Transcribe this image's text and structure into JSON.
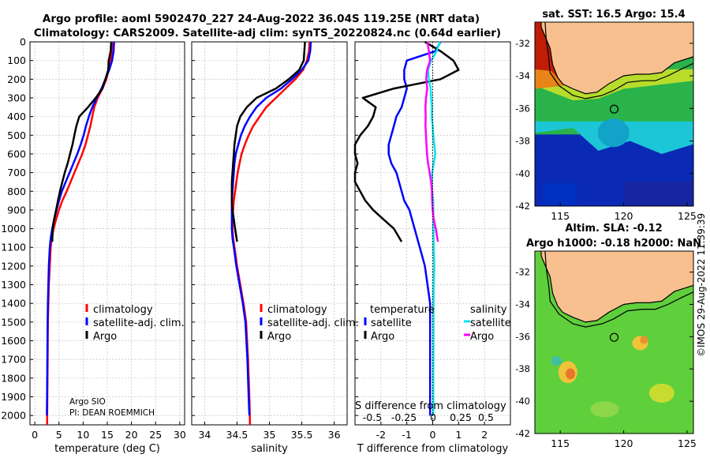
{
  "titles": {
    "line1": "Argo profile: aoml 5902470_227 24-Aug-2022 36.04S 119.25E (NRT data)",
    "line2": "Climatology: CARS2009. Satellite-adj clim: synTS_20220824.nc (0.64d earlier)"
  },
  "credit": "©IMOS 29-Aug-2022 11:39:39",
  "colors": {
    "argo": "#000000",
    "climatology": "#ff0000",
    "satellite": "#0000ff",
    "sal_sat": "#00e5ee",
    "sal_argo": "#ff00ff",
    "land": "#f9c08f"
  },
  "chart_data": [
    {
      "type": "line",
      "id": "temperature",
      "xlabel": "temperature (deg C)",
      "ylabel": "",
      "xlim": [
        -1,
        31
      ],
      "ylim": [
        2050,
        0
      ],
      "xticks": [
        0,
        5,
        10,
        15,
        20,
        25,
        30
      ],
      "yticks": [
        0,
        100,
        200,
        300,
        400,
        500,
        600,
        700,
        800,
        900,
        1000,
        1100,
        1200,
        1300,
        1400,
        1500,
        1600,
        1700,
        1800,
        1900,
        2000
      ],
      "legend": [
        "climatology",
        "satellite-adj. clim.",
        "Argo"
      ],
      "annotations": [
        "Argo SIO",
        "PI: DEAN ROEMMICH"
      ],
      "series": [
        {
          "name": "climatology",
          "color": "#ff0000",
          "x": [
            16.0,
            15.9,
            15.7,
            15.3,
            14.8,
            14.0,
            13.0,
            12.3,
            11.9,
            11.5,
            11.0,
            10.5,
            9.8,
            9.0,
            8.2,
            7.4,
            6.6,
            5.7,
            5.0,
            4.4,
            3.9,
            3.5,
            3.3,
            3.1,
            2.9,
            2.8,
            2.7,
            2.65,
            2.6,
            2.55
          ],
          "y": [
            0,
            50,
            100,
            150,
            200,
            250,
            300,
            350,
            400,
            450,
            500,
            550,
            600,
            650,
            700,
            750,
            800,
            850,
            900,
            950,
            1000,
            1050,
            1100,
            1200,
            1300,
            1400,
            1500,
            1700,
            1900,
            2050
          ]
        },
        {
          "name": "satellite-adj. clim.",
          "color": "#0000ff",
          "x": [
            16.4,
            16.3,
            16.0,
            15.4,
            14.6,
            13.8,
            12.8,
            11.9,
            11.2,
            10.6,
            10.1,
            9.5,
            8.8,
            8.0,
            7.2,
            6.4,
            5.6,
            5.0,
            4.5,
            4.0,
            3.6,
            3.3,
            3.1,
            2.9,
            2.8,
            2.7,
            2.65,
            2.6,
            2.55,
            2.5
          ],
          "y": [
            0,
            50,
            100,
            150,
            200,
            250,
            300,
            350,
            400,
            450,
            500,
            550,
            600,
            650,
            700,
            750,
            800,
            850,
            900,
            950,
            1000,
            1050,
            1100,
            1200,
            1300,
            1400,
            1500,
            1700,
            1900,
            2000
          ]
        },
        {
          "name": "Argo",
          "color": "#000000",
          "x": [
            15.8,
            15.7,
            15.3,
            15.2,
            14.6,
            14.0,
            12.6,
            11.0,
            9.2,
            8.6,
            8.2,
            7.8,
            7.3,
            6.8,
            6.2,
            5.7,
            5.2,
            4.8,
            4.4,
            4.0,
            3.7,
            3.6
          ],
          "y": [
            0,
            50,
            100,
            150,
            200,
            250,
            300,
            350,
            400,
            450,
            500,
            550,
            600,
            650,
            700,
            750,
            800,
            850,
            900,
            950,
            1000,
            1070
          ]
        }
      ]
    },
    {
      "type": "line",
      "id": "salinity",
      "xlabel": "salinity",
      "xlim": [
        33.8,
        36.2
      ],
      "ylim": [
        2050,
        0
      ],
      "xticks": [
        34,
        34.5,
        35,
        35.5,
        36
      ],
      "legend": [
        "climatology",
        "satellite-adj. clim.",
        "Argo"
      ],
      "series": [
        {
          "name": "climatology",
          "color": "#ff0000",
          "x": [
            35.62,
            35.61,
            35.58,
            35.52,
            35.4,
            35.25,
            35.1,
            34.95,
            34.85,
            34.75,
            34.68,
            34.62,
            34.57,
            34.54,
            34.51,
            34.49,
            34.47,
            34.45,
            34.44,
            34.43,
            34.43,
            34.44,
            34.46,
            34.5,
            34.55,
            34.6,
            34.64,
            34.67,
            34.69,
            34.7
          ],
          "y": [
            0,
            50,
            100,
            150,
            200,
            250,
            300,
            350,
            400,
            450,
            500,
            550,
            600,
            650,
            700,
            750,
            800,
            850,
            900,
            950,
            1000,
            1050,
            1100,
            1200,
            1300,
            1400,
            1500,
            1700,
            1900,
            2050
          ]
        },
        {
          "name": "satellite-adj. clim.",
          "color": "#0000ff",
          "x": [
            35.64,
            35.63,
            35.6,
            35.5,
            35.35,
            35.18,
            34.95,
            34.8,
            34.7,
            34.62,
            34.56,
            34.52,
            34.48,
            34.46,
            34.45,
            34.44,
            34.43,
            34.42,
            34.42,
            34.42,
            34.42,
            34.43,
            34.45,
            34.49,
            34.54,
            34.59,
            34.63,
            34.66,
            34.68,
            34.69
          ],
          "y": [
            0,
            50,
            100,
            150,
            200,
            250,
            300,
            350,
            400,
            450,
            500,
            550,
            600,
            650,
            700,
            750,
            800,
            850,
            900,
            950,
            1000,
            1050,
            1100,
            1200,
            1300,
            1400,
            1500,
            1700,
            1900,
            2000
          ]
        },
        {
          "name": "Argo",
          "color": "#000000",
          "x": [
            35.55,
            35.54,
            35.53,
            35.46,
            35.3,
            35.1,
            34.8,
            34.65,
            34.55,
            34.5,
            34.48,
            34.46,
            34.45,
            34.44,
            34.43,
            34.42,
            34.42,
            34.42,
            34.43,
            34.45,
            34.47,
            34.5
          ],
          "y": [
            0,
            50,
            100,
            150,
            200,
            250,
            300,
            350,
            400,
            450,
            500,
            550,
            600,
            650,
            700,
            750,
            800,
            850,
            900,
            950,
            1000,
            1070
          ]
        }
      ]
    },
    {
      "type": "line",
      "id": "difference",
      "xlabel": "T difference from climatology",
      "toplabel": "S difference from climatology",
      "xlim": [
        -3,
        3
      ],
      "ylim": [
        2050,
        0
      ],
      "xticks": [
        -2,
        -1,
        0,
        1,
        2
      ],
      "sal_ticks": [
        "-0.5",
        "-0.25",
        "0",
        "0.25",
        "0.5"
      ],
      "legend_t": {
        "title": "temperature",
        "items": [
          "satellite",
          "Argo"
        ]
      },
      "legend_s": {
        "title": "salinity",
        "items": [
          "satellite",
          "Argo"
        ]
      },
      "series": [
        {
          "name": "temperature satellite",
          "color": "#0000ff",
          "x": [
            0.3,
            0.1,
            -1.0,
            -1.1,
            -1.1,
            -1.0,
            -1.1,
            -1.2,
            -1.4,
            -1.5,
            -1.6,
            -1.7,
            -1.7,
            -1.6,
            -1.4,
            -1.3,
            -1.2,
            -1.1,
            -0.9,
            -0.7,
            -0.5,
            -0.3,
            -0.2,
            -0.1,
            -0.1,
            -0.1,
            -0.1
          ],
          "y": [
            0,
            50,
            100,
            150,
            200,
            250,
            300,
            350,
            400,
            450,
            500,
            550,
            600,
            650,
            700,
            750,
            800,
            850,
            900,
            1000,
            1100,
            1200,
            1300,
            1400,
            1600,
            1800,
            2000
          ]
        },
        {
          "name": "temperature Argo",
          "color": "#000000",
          "x": [
            -0.3,
            0.3,
            0.8,
            1.0,
            0.3,
            -1.5,
            -2.7,
            -2.2,
            -2.3,
            -2.5,
            -2.8,
            -3.0,
            -3.0,
            -2.9,
            -3.0,
            -3.0,
            -2.8,
            -2.6,
            -2.3,
            -1.9,
            -1.5,
            -1.2
          ],
          "y": [
            0,
            50,
            100,
            150,
            200,
            250,
            300,
            350,
            400,
            450,
            500,
            550,
            600,
            650,
            700,
            750,
            800,
            850,
            900,
            950,
            1000,
            1070
          ]
        },
        {
          "name": "salinity satellite",
          "color": "#00e5ee",
          "x": [
            0.28,
            0.15,
            -0.06,
            -0.18,
            -0.15,
            -0.08,
            -0.06,
            -0.03,
            -0.04,
            0.0,
            0.02,
            0.06,
            0.1,
            0.04,
            -0.02,
            -0.04,
            -0.02,
            0.02,
            0.02,
            0.03,
            0.04,
            0.06,
            0.04,
            0.03,
            0.03,
            0.02,
            0.02
          ],
          "y": [
            0,
            50,
            100,
            150,
            200,
            250,
            300,
            350,
            400,
            450,
            500,
            550,
            600,
            650,
            700,
            750,
            800,
            850,
            900,
            1000,
            1100,
            1200,
            1300,
            1400,
            1600,
            1800,
            2000
          ]
        },
        {
          "name": "salinity Argo",
          "color": "#ff00ff",
          "x": [
            -0.2,
            -0.15,
            -0.1,
            -0.22,
            -0.25,
            -0.21,
            -0.26,
            -0.28,
            -0.27,
            -0.28,
            -0.26,
            -0.24,
            -0.22,
            -0.18,
            -0.12,
            -0.06,
            -0.03,
            -0.02,
            0.0,
            0.04,
            0.12,
            0.2
          ],
          "y": [
            0,
            50,
            100,
            150,
            200,
            250,
            300,
            350,
            400,
            450,
            500,
            550,
            600,
            650,
            700,
            750,
            800,
            850,
            900,
            950,
            1000,
            1070
          ]
        }
      ]
    },
    {
      "type": "heatmap",
      "id": "sst_map",
      "title": "sat. SST: 16.5 Argo: 15.4",
      "xticks": [
        115,
        120,
        125
      ],
      "yticks": [
        -32,
        -34,
        -36,
        -38,
        -40,
        -42
      ],
      "xlim": [
        113,
        125.5
      ],
      "ylim": [
        -42,
        -30.7
      ],
      "profile": [
        119.25,
        -36.04
      ]
    },
    {
      "type": "heatmap",
      "id": "sla_map",
      "title1": "Altim. SLA: -0.12",
      "title2": "Argo h1000: -0.18 h2000: NaN",
      "xticks": [
        115,
        120,
        125
      ],
      "yticks": [
        -32,
        -34,
        -36,
        -38,
        -40,
        -42
      ],
      "xlim": [
        113,
        125.5
      ],
      "ylim": [
        -42,
        -30.7
      ],
      "profile": [
        119.25,
        -36.04
      ]
    }
  ]
}
